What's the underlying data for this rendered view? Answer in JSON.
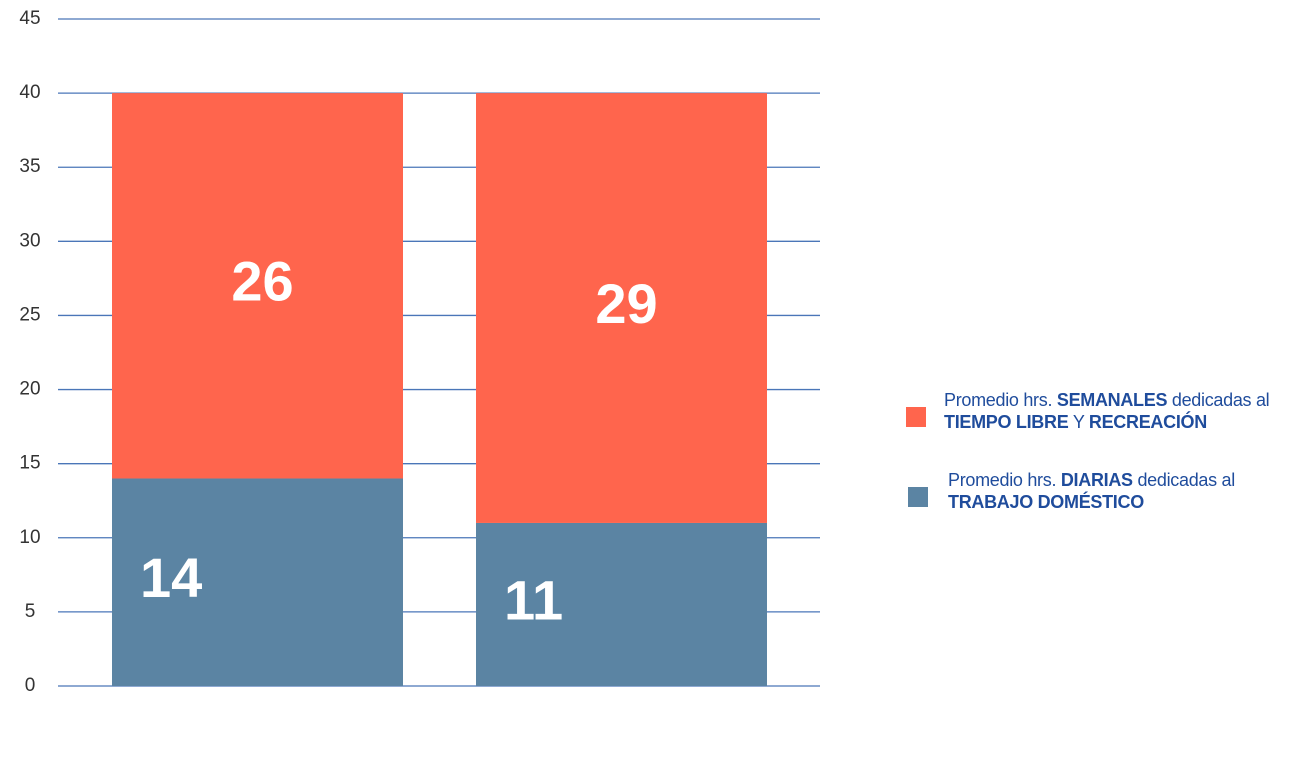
{
  "chart_data": {
    "type": "bar",
    "stacked": true,
    "categories": [
      null,
      null
    ],
    "series": [
      {
        "name": "Promedio hrs. DIARIAS dedicadas al TRABAJO DOMÉSTICO",
        "color": "#5b84a3",
        "values": [
          14,
          11
        ]
      },
      {
        "name": "Promedio hrs. SEMANALES dedicadas al TIEMPO LIBRE Y RECREACIÓN",
        "color": "#ff654d",
        "values": [
          26,
          29
        ]
      }
    ],
    "ylim": [
      0,
      45
    ],
    "yticks": [
      0,
      5,
      10,
      15,
      20,
      25,
      30,
      35,
      40,
      45
    ],
    "grid": true,
    "grid_color": "#4a76b8",
    "legend": "right"
  }
}
